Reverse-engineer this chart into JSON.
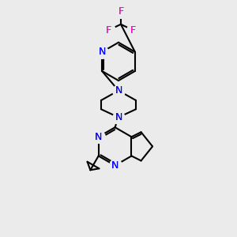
{
  "bg_color": "#ebebeb",
  "bond_color": "#000000",
  "N_color": "#0000ff",
  "F_color": "#ff00cc",
  "line_width": 1.5,
  "figsize": [
    3.0,
    3.0
  ],
  "dpi": 100,
  "xlim": [
    0,
    10
  ],
  "ylim": [
    0,
    10
  ]
}
